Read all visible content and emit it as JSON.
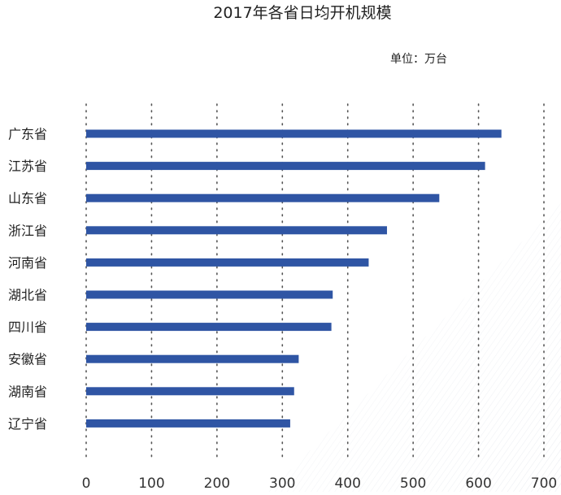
{
  "chart_data": {
    "type": "bar",
    "orientation": "horizontal",
    "title": "2017年各省日均开机规模",
    "unit_label": "单位：万台",
    "categories": [
      "广东省",
      "江苏省",
      "山东省",
      "浙江省",
      "河南省",
      "湖北省",
      "四川省",
      "安徽省",
      "湖南省",
      "辽宁省"
    ],
    "values": [
      635,
      610,
      540,
      460,
      432,
      377,
      375,
      325,
      318,
      312
    ],
    "xlim": [
      0,
      700
    ],
    "x_ticks": [
      "0",
      "100",
      "200",
      "300",
      "400",
      "500",
      "600",
      "700"
    ],
    "grid": "vertical dotted",
    "bar_color": "#2f55a4",
    "text_color": "#222222",
    "tick_color": "#333333",
    "grid_color": "#555555"
  }
}
